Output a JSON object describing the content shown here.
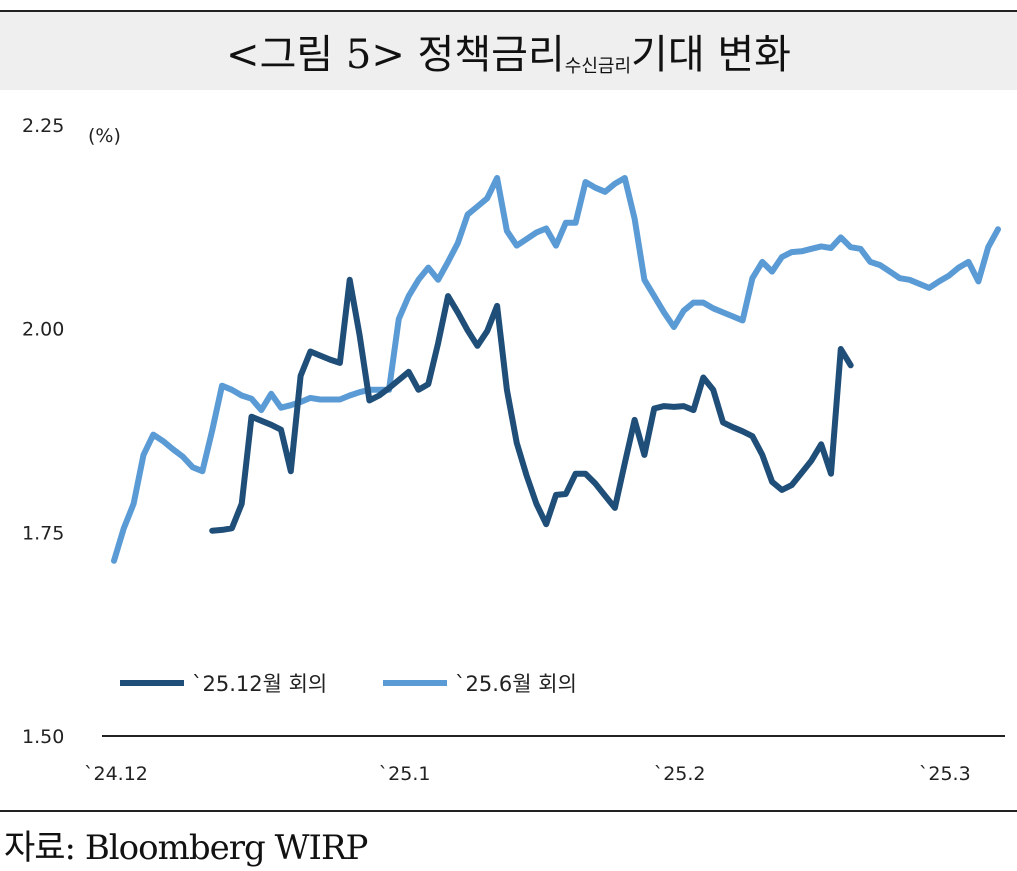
{
  "title": {
    "main_left": "<그림 5> 정책금리",
    "sub": "수신금리",
    "main_right": "기대 변화"
  },
  "source": "자료: Bloomberg WIRP",
  "chart_data": {
    "type": "line",
    "unit_label": "(%)",
    "ylim": [
      1.5,
      2.25
    ],
    "yticks": [
      "2.25",
      "2.00",
      "1.75",
      "1.50"
    ],
    "xticks": [
      "`24.12",
      "`25.1",
      "`25.2",
      "`25.3"
    ],
    "x_start": "2024-12-23",
    "grid": false,
    "legend_position": "lower-left",
    "colors": {
      "dec_meeting": "#1f4e79",
      "jun_meeting": "#5b9bd5"
    },
    "series": [
      {
        "name": "`25.12월 회의",
        "points": [
          [
            10,
            1.752
          ],
          [
            11,
            1.753
          ],
          [
            12,
            1.755
          ],
          [
            13,
            1.785
          ],
          [
            14,
            1.892
          ],
          [
            16,
            1.882
          ],
          [
            17,
            1.876
          ],
          [
            18,
            1.825
          ],
          [
            19,
            1.942
          ],
          [
            20,
            1.972
          ],
          [
            21,
            1.967
          ],
          [
            22,
            1.962
          ],
          [
            23,
            1.958
          ],
          [
            24,
            2.06
          ],
          [
            25,
            1.992
          ],
          [
            26,
            1.912
          ],
          [
            27,
            1.918
          ],
          [
            28,
            1.927
          ],
          [
            29,
            1.937
          ],
          [
            30,
            1.947
          ],
          [
            31,
            1.925
          ],
          [
            32,
            1.932
          ],
          [
            33,
            1.982
          ],
          [
            34,
            2.04
          ],
          [
            35,
            2.02
          ],
          [
            36,
            1.998
          ],
          [
            37,
            1.979
          ],
          [
            38,
            1.997
          ],
          [
            39,
            2.028
          ],
          [
            40,
            1.925
          ],
          [
            41,
            1.86
          ],
          [
            42,
            1.82
          ],
          [
            43,
            1.785
          ],
          [
            44,
            1.76
          ],
          [
            45,
            1.796
          ],
          [
            46,
            1.797
          ],
          [
            47,
            1.822
          ],
          [
            48,
            1.822
          ],
          [
            49,
            1.81
          ],
          [
            50,
            1.795
          ],
          [
            51,
            1.78
          ],
          [
            52,
            1.835
          ],
          [
            53,
            1.888
          ],
          [
            54,
            1.845
          ],
          [
            55,
            1.902
          ],
          [
            56,
            1.905
          ],
          [
            57,
            1.904
          ],
          [
            58,
            1.905
          ],
          [
            59,
            1.9
          ],
          [
            60,
            1.94
          ],
          [
            61,
            1.925
          ],
          [
            62,
            1.885
          ],
          [
            63,
            1.879
          ],
          [
            64,
            1.874
          ],
          [
            65,
            1.868
          ],
          [
            66,
            1.845
          ],
          [
            67,
            1.812
          ],
          [
            68,
            1.802
          ],
          [
            69,
            1.808
          ],
          [
            70,
            1.823
          ],
          [
            71,
            1.838
          ],
          [
            72,
            1.858
          ],
          [
            73,
            1.822
          ],
          [
            74,
            1.975
          ],
          [
            75,
            1.955
          ]
        ]
      },
      {
        "name": "`25.6월 회의",
        "points": [
          [
            0,
            1.715
          ],
          [
            1,
            1.755
          ],
          [
            2,
            1.785
          ],
          [
            3,
            1.845
          ],
          [
            4,
            1.87
          ],
          [
            5,
            1.862
          ],
          [
            6,
            1.852
          ],
          [
            7,
            1.843
          ],
          [
            8,
            1.83
          ],
          [
            9,
            1.825
          ],
          [
            10,
            1.875
          ],
          [
            11,
            1.93
          ],
          [
            12,
            1.925
          ],
          [
            13,
            1.918
          ],
          [
            14,
            1.914
          ],
          [
            15,
            1.9
          ],
          [
            16,
            1.92
          ],
          [
            17,
            1.903
          ],
          [
            18,
            1.906
          ],
          [
            19,
            1.91
          ],
          [
            20,
            1.915
          ],
          [
            21,
            1.913
          ],
          [
            22,
            1.913
          ],
          [
            23,
            1.913
          ],
          [
            24,
            1.918
          ],
          [
            25,
            1.922
          ],
          [
            26,
            1.925
          ],
          [
            27,
            1.925
          ],
          [
            28,
            1.925
          ],
          [
            29,
            2.012
          ],
          [
            30,
            2.04
          ],
          [
            31,
            2.06
          ],
          [
            32,
            2.075
          ],
          [
            33,
            2.06
          ],
          [
            34,
            2.082
          ],
          [
            35,
            2.105
          ],
          [
            36,
            2.14
          ],
          [
            37,
            2.15
          ],
          [
            38,
            2.16
          ],
          [
            39,
            2.185
          ],
          [
            40,
            2.12
          ],
          [
            41,
            2.102
          ],
          [
            42,
            2.11
          ],
          [
            43,
            2.118
          ],
          [
            44,
            2.123
          ],
          [
            45,
            2.102
          ],
          [
            46,
            2.13
          ],
          [
            47,
            2.13
          ],
          [
            48,
            2.18
          ],
          [
            49,
            2.173
          ],
          [
            50,
            2.168
          ],
          [
            51,
            2.178
          ],
          [
            52,
            2.185
          ],
          [
            53,
            2.135
          ],
          [
            54,
            2.06
          ],
          [
            55,
            2.04
          ],
          [
            56,
            2.02
          ],
          [
            57,
            2.002
          ],
          [
            58,
            2.022
          ],
          [
            59,
            2.032
          ],
          [
            60,
            2.032
          ],
          [
            61,
            2.025
          ],
          [
            62,
            2.02
          ],
          [
            63,
            2.015
          ],
          [
            64,
            2.01
          ],
          [
            65,
            2.062
          ],
          [
            66,
            2.082
          ],
          [
            67,
            2.07
          ],
          [
            68,
            2.088
          ],
          [
            69,
            2.094
          ],
          [
            70,
            2.095
          ],
          [
            71,
            2.098
          ],
          [
            72,
            2.101
          ],
          [
            73,
            2.099
          ],
          [
            74,
            2.112
          ],
          [
            75,
            2.1
          ],
          [
            76,
            2.098
          ],
          [
            77,
            2.082
          ],
          [
            78,
            2.078
          ],
          [
            79,
            2.07
          ],
          [
            80,
            2.062
          ],
          [
            81,
            2.06
          ],
          [
            82,
            2.055
          ],
          [
            83,
            2.05
          ],
          [
            84,
            2.058
          ],
          [
            85,
            2.065
          ],
          [
            86,
            2.075
          ],
          [
            87,
            2.082
          ],
          [
            88,
            2.058
          ],
          [
            89,
            2.1
          ],
          [
            90,
            2.122
          ]
        ]
      }
    ]
  }
}
